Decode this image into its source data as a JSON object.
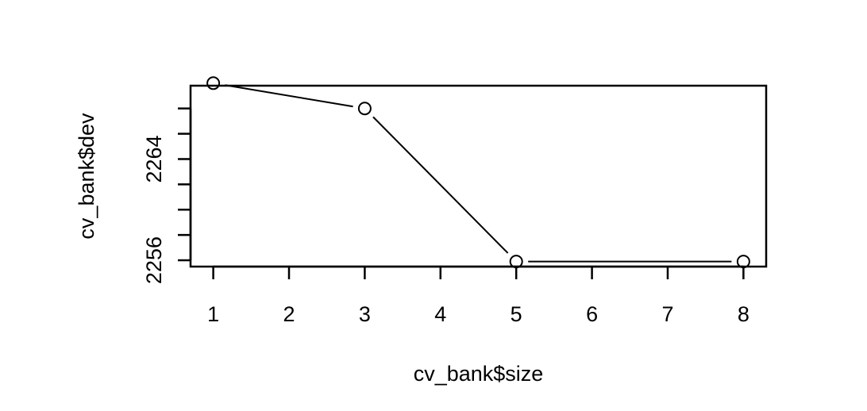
{
  "chart_data": {
    "type": "line",
    "title": "",
    "xlabel": "cv_bank$size",
    "ylabel": "cv_bank$dev",
    "x": [
      1,
      3,
      5,
      8
    ],
    "y": [
      2270,
      2268,
      2255.9,
      2255.9
    ],
    "xlim": [
      0.7,
      8.3
    ],
    "ylim": [
      2255.5,
      2269.8
    ],
    "x_ticks": [
      1,
      2,
      3,
      4,
      5,
      6,
      7,
      8
    ],
    "x_tick_labels": [
      "1",
      "2",
      "3",
      "4",
      "5",
      "6",
      "7",
      "8"
    ],
    "y_ticks": [
      2256,
      2258,
      2260,
      2262,
      2264,
      2266,
      2268
    ],
    "y_tick_labels": [
      "2256",
      "",
      "",
      "",
      "2264",
      "",
      ""
    ],
    "grid": false,
    "legend": "none",
    "marker": "open-circle",
    "line_color": "#000000"
  }
}
